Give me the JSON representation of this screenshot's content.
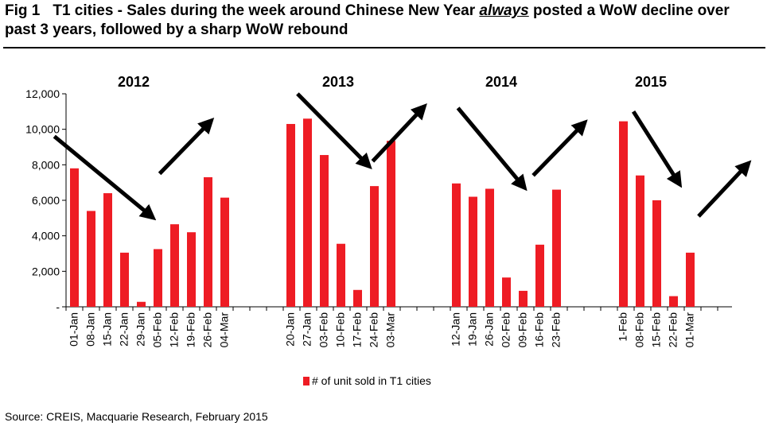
{
  "figure": {
    "number": "Fig 1",
    "title_part1": "T1 cities - Sales during the week around Chinese New Year ",
    "title_emphasis": "always",
    "title_part2": " posted a WoW decline over past 3 years, followed by a sharp WoW rebound"
  },
  "source": "Source: CREIS, Macquarie Research, February 2015",
  "colors": {
    "bar": "#ee1c24",
    "arrow": "#000000",
    "axis": "#000000"
  },
  "chart_data": {
    "type": "bar",
    "title": "",
    "xlabel": "",
    "ylabel": "",
    "ylim": [
      0,
      12000
    ],
    "yticks": [
      0,
      2000,
      4000,
      6000,
      8000,
      10000,
      12000
    ],
    "ytick_labels": [
      "-",
      "2,000",
      "4,000",
      "6,000",
      "8,000",
      "10,000",
      "12,000"
    ],
    "grid": false,
    "legend": {
      "position": "bottom",
      "entries": [
        "# of unit sold in T1 cities"
      ]
    },
    "series": [
      {
        "name": "# of unit sold in T1 cities"
      }
    ],
    "groups": [
      {
        "label": "2012",
        "categories": [
          "01-Jan",
          "08-Jan",
          "15-Jan",
          "22-Jan",
          "29-Jan",
          "05-Feb",
          "12-Feb",
          "19-Feb",
          "26-Feb",
          "04-Mar"
        ],
        "values": [
          7800,
          5400,
          6400,
          3050,
          280,
          3250,
          4650,
          4200,
          7300,
          6150
        ]
      },
      {
        "label": "2013",
        "categories": [
          "20-Jan",
          "27-Jan",
          "03-Feb",
          "10-Feb",
          "17-Feb",
          "24-Feb",
          "03-Mar"
        ],
        "values": [
          10300,
          10600,
          8550,
          3550,
          950,
          6800,
          9350
        ]
      },
      {
        "label": "2014",
        "categories": [
          "12-Jan",
          "19-Jan",
          "26-Jan",
          "02-Feb",
          "09-Feb",
          "16-Feb",
          "23-Feb"
        ],
        "values": [
          6950,
          6200,
          6650,
          1650,
          900,
          3500,
          6600
        ]
      },
      {
        "label": "2015",
        "categories": [
          "1-Feb",
          "08-Feb",
          "15-Feb",
          "22-Feb",
          "01-Mar"
        ],
        "values": [
          10450,
          7400,
          6000,
          600,
          3050
        ]
      }
    ],
    "annotations": [
      {
        "type": "arrow",
        "direction": "down-right",
        "from": [
          -1.2,
          9600
        ],
        "to": [
          4.6,
          5100
        ],
        "group": 0
      },
      {
        "type": "arrow",
        "direction": "up-right",
        "from": [
          5.1,
          7500
        ],
        "to": [
          8.1,
          10400
        ],
        "group": 0
      },
      {
        "type": "arrow",
        "direction": "down-right",
        "from": [
          0.4,
          12000
        ],
        "to": [
          4.6,
          8000
        ],
        "group": 1
      },
      {
        "type": "arrow",
        "direction": "up-right",
        "from": [
          4.9,
          8200
        ],
        "to": [
          7.9,
          11200
        ],
        "group": 1
      },
      {
        "type": "arrow",
        "direction": "down-right",
        "from": [
          0.1,
          11200
        ],
        "to": [
          4.0,
          6800
        ],
        "group": 2
      },
      {
        "type": "arrow",
        "direction": "up-right",
        "from": [
          4.6,
          7400
        ],
        "to": [
          7.6,
          10300
        ],
        "group": 2
      },
      {
        "type": "arrow",
        "direction": "down-right",
        "from": [
          0.6,
          11000
        ],
        "to": [
          3.3,
          7000
        ],
        "group": 3
      },
      {
        "type": "arrow",
        "direction": "up-right",
        "from": [
          4.5,
          5100
        ],
        "to": [
          7.4,
          8000
        ],
        "group": 3
      }
    ]
  }
}
